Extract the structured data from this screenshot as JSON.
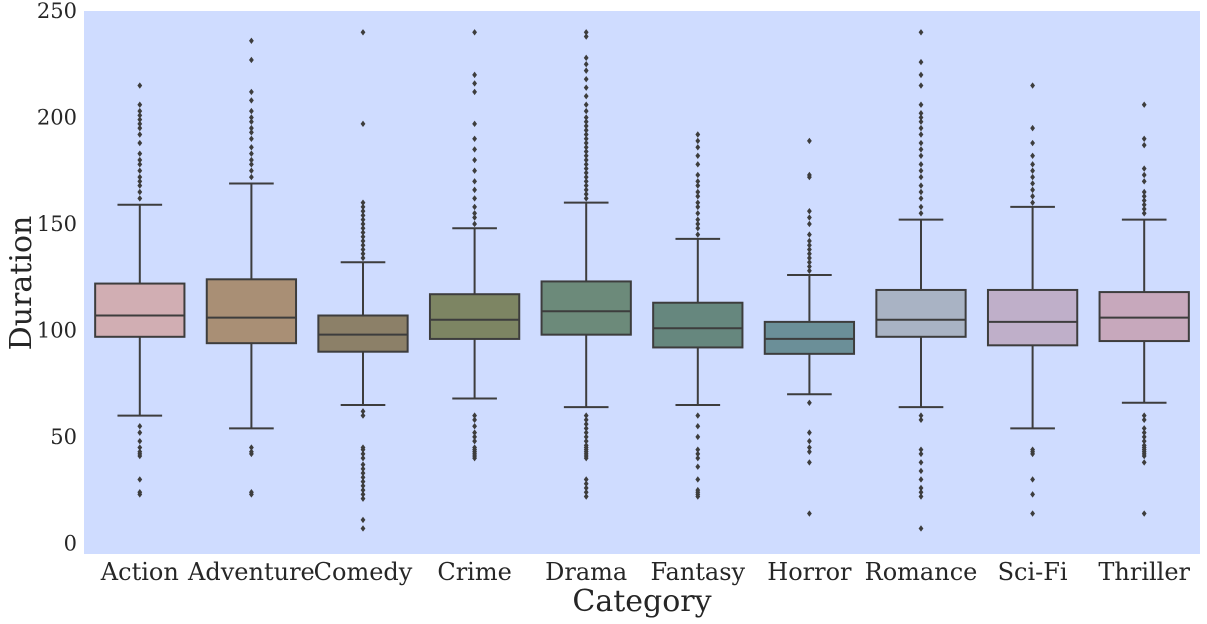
{
  "chart_data": {
    "type": "box",
    "xlabel": "Category",
    "ylabel": "Duration",
    "ylim": [
      -5,
      250
    ],
    "yticks": [
      0,
      50,
      100,
      150,
      200,
      250
    ],
    "grid": false,
    "background": "#cfdcff",
    "line_color": "#3d3d3d",
    "categories": [
      "Action",
      "Adventure",
      "Comedy",
      "Crime",
      "Drama",
      "Fantasy",
      "Horror",
      "Romance",
      "Sci-Fi",
      "Thriller"
    ],
    "series": [
      {
        "name": "Action",
        "color": "#d1aeb3",
        "whisker_low": 60,
        "q1": 97,
        "median": 107,
        "q3": 122,
        "whisker_high": 159,
        "outliers": [
          23,
          24,
          30,
          41,
          42,
          43,
          45,
          48,
          52,
          55,
          162,
          165,
          168,
          170,
          172,
          175,
          178,
          180,
          183,
          188,
          192,
          195,
          197,
          199,
          201,
          203,
          206,
          215
        ]
      },
      {
        "name": "Adventure",
        "color": "#a98f75",
        "whisker_low": 54,
        "q1": 94,
        "median": 106,
        "q3": 124,
        "whisker_high": 169,
        "outliers": [
          23,
          24,
          42,
          43,
          45,
          172,
          175,
          178,
          180,
          183,
          186,
          190,
          193,
          195,
          198,
          200,
          203,
          208,
          212,
          227,
          236
        ]
      },
      {
        "name": "Comedy",
        "color": "#8c8068",
        "whisker_low": 65,
        "q1": 90,
        "median": 98,
        "q3": 107,
        "whisker_high": 132,
        "outliers": [
          7,
          11,
          21,
          23,
          25,
          27,
          29,
          31,
          33,
          35,
          37,
          40,
          42,
          44,
          45,
          60,
          62,
          134,
          136,
          138,
          140,
          142,
          144,
          146,
          148,
          150,
          152,
          154,
          156,
          158,
          160,
          197,
          240
        ]
      },
      {
        "name": "Crime",
        "color": "#7d8563",
        "whisker_low": 68,
        "q1": 96,
        "median": 105,
        "q3": 117,
        "whisker_high": 148,
        "outliers": [
          40,
          41,
          42,
          43,
          44,
          45,
          48,
          50,
          52,
          55,
          58,
          60,
          150,
          153,
          155,
          158,
          162,
          166,
          170,
          175,
          180,
          185,
          190,
          197,
          212,
          216,
          220,
          240
        ]
      },
      {
        "name": "Drama",
        "color": "#6c8a7a",
        "whisker_low": 64,
        "q1": 98,
        "median": 109,
        "q3": 123,
        "whisker_high": 160,
        "outliers": [
          22,
          24,
          26,
          28,
          30,
          40,
          41,
          42,
          43,
          44,
          45,
          46,
          48,
          50,
          52,
          54,
          56,
          58,
          60,
          162,
          164,
          166,
          168,
          170,
          172,
          174,
          176,
          178,
          180,
          182,
          184,
          186,
          188,
          190,
          192,
          194,
          196,
          198,
          200,
          203,
          206,
          210,
          214,
          218,
          222,
          225,
          228,
          238,
          240
        ]
      },
      {
        "name": "Fantasy",
        "color": "#66877e",
        "whisker_low": 65,
        "q1": 92,
        "median": 101,
        "q3": 113,
        "whisker_high": 143,
        "outliers": [
          22,
          23,
          24,
          25,
          30,
          36,
          40,
          42,
          44,
          50,
          55,
          60,
          145,
          148,
          150,
          152,
          155,
          158,
          160,
          163,
          165,
          168,
          170,
          173,
          178,
          182,
          186,
          189,
          192
        ]
      },
      {
        "name": "Horror",
        "color": "#6b8f98",
        "whisker_low": 70,
        "q1": 89,
        "median": 96,
        "q3": 104,
        "whisker_high": 126,
        "outliers": [
          14,
          38,
          43,
          45,
          48,
          52,
          66,
          128,
          130,
          132,
          134,
          136,
          138,
          140,
          142,
          145,
          150,
          153,
          156,
          172,
          173,
          189
        ]
      },
      {
        "name": "Romance",
        "color": "#a9b3c4",
        "whisker_low": 64,
        "q1": 97,
        "median": 105,
        "q3": 119,
        "whisker_high": 152,
        "outliers": [
          7,
          22,
          24,
          26,
          30,
          34,
          38,
          42,
          44,
          58,
          60,
          155,
          158,
          162,
          165,
          168,
          172,
          175,
          178,
          182,
          185,
          188,
          192,
          195,
          198,
          200,
          202,
          206,
          215,
          220,
          226,
          240
        ]
      },
      {
        "name": "Sci-Fi",
        "color": "#bfafc9",
        "whisker_low": 54,
        "q1": 93,
        "median": 104,
        "q3": 119,
        "whisker_high": 158,
        "outliers": [
          14,
          23,
          30,
          42,
          43,
          44,
          160,
          163,
          166,
          169,
          172,
          175,
          178,
          182,
          188,
          195,
          215
        ]
      },
      {
        "name": "Thriller",
        "color": "#c7a8bc",
        "whisker_low": 66,
        "q1": 95,
        "median": 106,
        "q3": 118,
        "whisker_high": 152,
        "outliers": [
          14,
          38,
          41,
          42,
          43,
          44,
          45,
          46,
          48,
          50,
          52,
          54,
          58,
          60,
          155,
          157,
          159,
          161,
          163,
          165,
          170,
          173,
          176,
          187,
          190,
          206
        ]
      }
    ]
  }
}
